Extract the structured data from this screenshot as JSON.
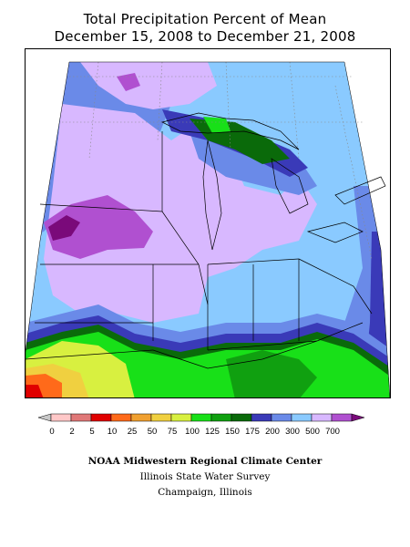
{
  "title": {
    "line1": "Total Precipitation Percent of Mean",
    "line2": "December 15, 2008 to December 21, 2008"
  },
  "colors": {
    "0": "#c8c8c8",
    "2": "#ffc8c8",
    "5": "#e07878",
    "10": "#e00000",
    "25": "#ff6a1a",
    "50": "#f0d040",
    "75": "#d8f040",
    "100": "#18e018",
    "125": "#10a010",
    "150": "#0a6a0a",
    "175": "#3a3ab8",
    "200": "#6a8ae8",
    "300": "#8acaff",
    "500": "#d8b8ff",
    "700": "#b050d0",
    "max": "#7a0a7a"
  },
  "legend": {
    "labels": [
      "0",
      "2",
      "5",
      "10",
      "25",
      "50",
      "75",
      "100",
      "125",
      "150",
      "175",
      "200",
      "300",
      "500",
      "700"
    ],
    "swatch_colors": [
      "#ffc8c8",
      "#e07878",
      "#e00000",
      "#ff6a1a",
      "#f0a030",
      "#f0d040",
      "#d8f040",
      "#18e018",
      "#10a010",
      "#0a6a0a",
      "#3a3ab8",
      "#6a8ae8",
      "#8acaff",
      "#d8b8ff",
      "#b050d0"
    ],
    "low_arrow_color": "#c8c8c8",
    "high_arrow_color": "#7a0a7a"
  },
  "credits": {
    "line1": "NOAA Midwestern Regional Climate Center",
    "line2": "Illinois State Water Survey",
    "line3": "Champaign, Illinois"
  }
}
